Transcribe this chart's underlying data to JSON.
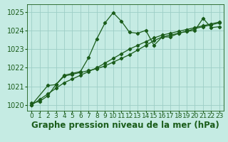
{
  "xlabel": "Graphe pression niveau de la mer (hPa)",
  "bg_color": "#c5ebe3",
  "grid_color": "#9dcec6",
  "line_color": "#1a5c1a",
  "marker": "D",
  "markersize": 2.2,
  "linewidth": 0.9,
  "xlim": [
    -0.5,
    23.5
  ],
  "ylim": [
    1019.7,
    1025.4
  ],
  "yticks": [
    1020,
    1021,
    1022,
    1023,
    1024,
    1025
  ],
  "xticks": [
    0,
    1,
    2,
    3,
    4,
    5,
    6,
    7,
    8,
    9,
    10,
    11,
    12,
    13,
    14,
    15,
    16,
    17,
    18,
    19,
    20,
    21,
    22,
    23
  ],
  "line1_x": [
    0,
    1,
    2,
    3,
    4,
    5,
    6,
    7,
    8,
    9,
    10,
    11,
    12,
    13,
    14,
    15,
    16,
    17,
    18,
    19,
    20,
    21,
    22,
    23
  ],
  "line1_y": [
    1020.1,
    1020.2,
    1020.5,
    1021.1,
    1021.6,
    1021.7,
    1021.8,
    1022.55,
    1023.55,
    1024.4,
    1024.95,
    1024.5,
    1023.9,
    1023.85,
    1024.0,
    1023.2,
    1023.65,
    1023.65,
    1023.85,
    1023.95,
    1024.0,
    1024.65,
    1024.15,
    1024.2
  ],
  "line2_x": [
    0,
    2,
    3,
    4,
    5,
    6,
    7,
    8,
    9,
    10,
    11,
    12,
    13,
    14,
    15,
    16,
    17,
    18,
    19,
    20,
    21,
    22,
    23
  ],
  "line2_y": [
    1020.0,
    1021.05,
    1021.1,
    1021.55,
    1021.65,
    1021.75,
    1021.85,
    1021.95,
    1022.1,
    1022.3,
    1022.5,
    1022.7,
    1022.95,
    1023.2,
    1023.45,
    1023.65,
    1023.75,
    1023.85,
    1023.95,
    1024.1,
    1024.2,
    1024.3,
    1024.4
  ],
  "line3_x": [
    0,
    1,
    2,
    3,
    4,
    5,
    6,
    7,
    8,
    9,
    10,
    11,
    12,
    13,
    14,
    15,
    16,
    17,
    18,
    19,
    20,
    21,
    22,
    23
  ],
  "line3_y": [
    1020.0,
    1020.3,
    1020.6,
    1020.9,
    1021.2,
    1021.4,
    1021.6,
    1021.8,
    1022.0,
    1022.25,
    1022.5,
    1022.75,
    1023.0,
    1023.2,
    1023.4,
    1023.6,
    1023.75,
    1023.85,
    1023.95,
    1024.05,
    1024.15,
    1024.25,
    1024.35,
    1024.45
  ],
  "xlabel_fontsize": 8.5,
  "tick_fontsize": 6.5,
  "ytick_fontsize": 7,
  "figbg_color": "#c5ebe3"
}
